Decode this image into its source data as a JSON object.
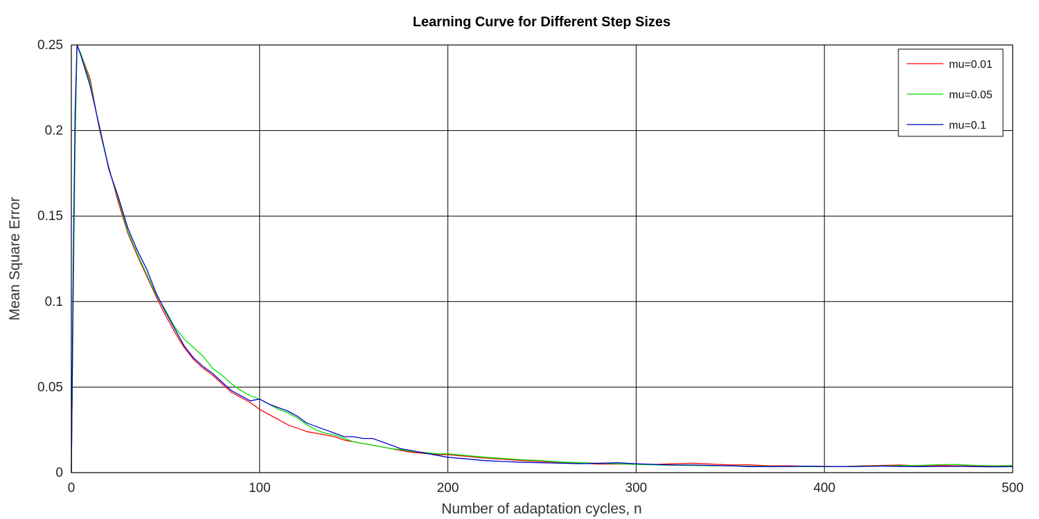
{
  "chart_data": {
    "type": "line",
    "title": "Learning Curve for Different Step Sizes",
    "xlabel": "Number of adaptation cycles, n",
    "ylabel": "Mean Square Error",
    "xlim": [
      0,
      500
    ],
    "ylim": [
      0,
      0.25
    ],
    "xticks": [
      0,
      100,
      200,
      300,
      400,
      500
    ],
    "xtick_labels": [
      "0",
      "100",
      "200",
      "300",
      "400",
      "500"
    ],
    "yticks": [
      0,
      0.05,
      0.1,
      0.15,
      0.2,
      0.25
    ],
    "ytick_labels": [
      "0",
      "0.05",
      "0.1",
      "0.15",
      "0.2",
      "0.25"
    ],
    "grid": true,
    "legend_position": "top-right",
    "x": [
      0,
      1,
      2,
      3,
      5,
      10,
      15,
      20,
      25,
      30,
      35,
      40,
      45,
      50,
      55,
      60,
      65,
      70,
      75,
      80,
      85,
      90,
      95,
      100,
      105,
      110,
      115,
      120,
      125,
      130,
      135,
      140,
      145,
      150,
      155,
      160,
      165,
      170,
      175,
      180,
      185,
      190,
      195,
      200,
      210,
      220,
      230,
      240,
      250,
      260,
      270,
      280,
      290,
      300,
      310,
      320,
      330,
      340,
      350,
      360,
      370,
      380,
      390,
      400,
      410,
      420,
      430,
      440,
      450,
      460,
      470,
      480,
      490,
      500
    ],
    "series": [
      {
        "name": "mu=0.01",
        "color": "#ff0000",
        "values": [
          0,
          0.11,
          0.2,
          0.25,
          0.245,
          0.23,
          0.2,
          0.178,
          0.158,
          0.14,
          0.127,
          0.115,
          0.103,
          0.092,
          0.082,
          0.073,
          0.066,
          0.061,
          0.057,
          0.052,
          0.047,
          0.044,
          0.041,
          0.037,
          0.034,
          0.031,
          0.028,
          0.026,
          0.024,
          0.023,
          0.022,
          0.021,
          0.019,
          0.018,
          0.017,
          0.016,
          0.015,
          0.014,
          0.013,
          0.012,
          0.0115,
          0.011,
          0.0105,
          0.0105,
          0.0095,
          0.0085,
          0.0078,
          0.007,
          0.0065,
          0.006,
          0.0055,
          0.005,
          0.005,
          0.005,
          0.0048,
          0.0052,
          0.0055,
          0.005,
          0.0045,
          0.0046,
          0.004,
          0.004,
          0.0038,
          0.0037,
          0.0035,
          0.004,
          0.0042,
          0.0045,
          0.004,
          0.0042,
          0.004,
          0.0038,
          0.0036,
          0.0036
        ]
      },
      {
        "name": "mu=0.05",
        "color": "#00dd00",
        "values": [
          0,
          0.1,
          0.19,
          0.25,
          0.245,
          0.228,
          0.201,
          0.177,
          0.16,
          0.141,
          0.128,
          0.116,
          0.104,
          0.095,
          0.085,
          0.078,
          0.073,
          0.068,
          0.061,
          0.057,
          0.052,
          0.048,
          0.045,
          0.043,
          0.04,
          0.037,
          0.035,
          0.032,
          0.028,
          0.025,
          0.023,
          0.022,
          0.02,
          0.018,
          0.017,
          0.016,
          0.015,
          0.014,
          0.0135,
          0.0125,
          0.012,
          0.0115,
          0.011,
          0.011,
          0.01,
          0.009,
          0.0082,
          0.0075,
          0.007,
          0.0062,
          0.0058,
          0.0055,
          0.0052,
          0.0048,
          0.0045,
          0.0043,
          0.0042,
          0.004,
          0.004,
          0.0038,
          0.0037,
          0.0036,
          0.0035,
          0.0035,
          0.0036,
          0.0038,
          0.0039,
          0.0041,
          0.0042,
          0.0046,
          0.0048,
          0.0042,
          0.004,
          0.0042
        ]
      },
      {
        "name": "mu=0.1",
        "color": "#0000cc",
        "values": [
          0,
          0.12,
          0.21,
          0.25,
          0.244,
          0.226,
          0.202,
          0.177,
          0.161,
          0.143,
          0.13,
          0.119,
          0.105,
          0.094,
          0.084,
          0.074,
          0.067,
          0.062,
          0.058,
          0.053,
          0.048,
          0.045,
          0.042,
          0.043,
          0.04,
          0.038,
          0.036,
          0.033,
          0.029,
          0.027,
          0.025,
          0.023,
          0.021,
          0.021,
          0.02,
          0.02,
          0.018,
          0.016,
          0.014,
          0.013,
          0.012,
          0.011,
          0.01,
          0.009,
          0.008,
          0.007,
          0.0065,
          0.006,
          0.0058,
          0.0055,
          0.0052,
          0.0055,
          0.0058,
          0.0052,
          0.0048,
          0.0045,
          0.0045,
          0.0042,
          0.004,
          0.0035,
          0.0035,
          0.0036,
          0.0038,
          0.0036,
          0.0035,
          0.0036,
          0.0038,
          0.0036,
          0.0035,
          0.0036,
          0.0037,
          0.0035,
          0.0034,
          0.0035
        ]
      }
    ]
  }
}
